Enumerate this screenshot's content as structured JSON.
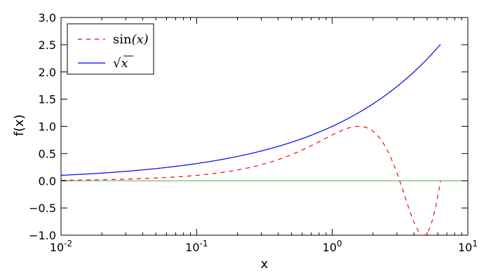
{
  "chart_data": {
    "type": "line",
    "title": "",
    "xlabel": "x",
    "ylabel": "f(x)",
    "xscale": "log",
    "xlim": [
      0.01,
      10
    ],
    "ylim": [
      -1.0,
      3.0
    ],
    "grid": false,
    "legend_position": "upper-left",
    "x_ticks": [
      {
        "value": 0.01,
        "base": "10",
        "exp": "-2"
      },
      {
        "value": 0.1,
        "base": "10",
        "exp": "-1"
      },
      {
        "value": 1,
        "base": "10",
        "exp": "0"
      },
      {
        "value": 10,
        "base": "10",
        "exp": "1"
      }
    ],
    "y_ticks": [
      {
        "value": -1.0,
        "label": "−1.0"
      },
      {
        "value": -0.5,
        "label": "−0.5"
      },
      {
        "value": 0.0,
        "label": "0.0"
      },
      {
        "value": 0.5,
        "label": "0.5"
      },
      {
        "value": 1.0,
        "label": "1.0"
      },
      {
        "value": 1.5,
        "label": "1.5"
      },
      {
        "value": 2.0,
        "label": "2.0"
      },
      {
        "value": 2.5,
        "label": "2.5"
      },
      {
        "value": 3.0,
        "label": "3.0"
      }
    ],
    "reference_line": {
      "y": 0.0,
      "color": "#4daf4a"
    },
    "series": [
      {
        "name": "sin(x)",
        "color": "#ff0000",
        "line_style": "dashed",
        "x": [
          0.01,
          0.02,
          0.05,
          0.1,
          0.2,
          0.3,
          0.5,
          0.75,
          1.0,
          1.25,
          1.5708,
          1.8,
          2.0,
          2.2,
          2.5,
          2.8,
          3.1416,
          3.5,
          3.8,
          4.1,
          4.4,
          4.7124,
          5.0,
          5.3,
          5.6,
          5.9,
          6.0,
          6.2832
        ],
        "y": [
          0.01,
          0.02,
          0.05,
          0.0998,
          0.1987,
          0.2955,
          0.4794,
          0.6816,
          0.8415,
          0.949,
          1.0,
          0.9738,
          0.9093,
          0.8085,
          0.5985,
          0.335,
          0.0,
          -0.3508,
          -0.6119,
          -0.8183,
          -0.9516,
          -1.0,
          -0.9589,
          -0.8323,
          -0.6313,
          -0.3739,
          -0.2794,
          0.0
        ]
      },
      {
        "name": "√x",
        "color": "#0000ff",
        "line_style": "solid",
        "x": [
          0.01,
          0.02,
          0.05,
          0.1,
          0.2,
          0.5,
          1.0,
          2.0,
          3.0,
          4.0,
          5.0,
          6.2832
        ],
        "y": [
          0.1,
          0.1414,
          0.2236,
          0.3162,
          0.4472,
          0.7071,
          1.0,
          1.4142,
          1.7321,
          2.0,
          2.2361,
          2.5066
        ]
      }
    ],
    "legend": [
      {
        "label": "sin",
        "arg": "(x)",
        "series": 0
      },
      {
        "label": "√",
        "arg": "x",
        "series": 1
      }
    ]
  }
}
